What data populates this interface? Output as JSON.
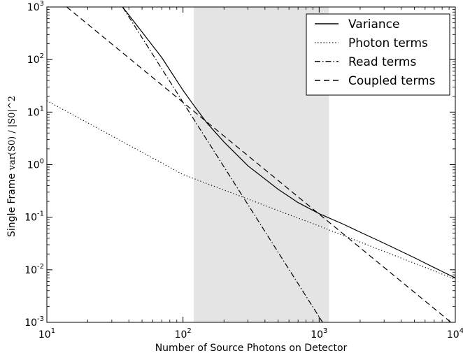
{
  "chart_data": {
    "type": "line",
    "xlabel": "Number of Source Photons on Detector",
    "ylabel_prefix": "Single Frame ",
    "ylabel_math": "var(S0) / |S0|^2",
    "x_scale": "log",
    "y_scale": "log",
    "xlim": [
      10,
      10000
    ],
    "ylim": [
      0.001,
      1000
    ],
    "grid": false,
    "legend_position": "top-right",
    "shaded_region": {
      "x_range": [
        120,
        1180
      ],
      "color": "#e4e4e4"
    },
    "x_ticks": [
      {
        "value": 10,
        "base": "10",
        "exp": "1"
      },
      {
        "value": 100,
        "base": "10",
        "exp": "2"
      },
      {
        "value": 1000,
        "base": "10",
        "exp": "3"
      },
      {
        "value": 10000,
        "base": "10",
        "exp": "4"
      }
    ],
    "y_ticks": [
      {
        "value": 0.001,
        "base": "10",
        "exp": "-3"
      },
      {
        "value": 0.01,
        "base": "10",
        "exp": "-2"
      },
      {
        "value": 0.1,
        "base": "10",
        "exp": "-1"
      },
      {
        "value": 1,
        "base": "10",
        "exp": "0"
      },
      {
        "value": 10,
        "base": "10",
        "exp": "1"
      },
      {
        "value": 100,
        "base": "10",
        "exp": "2"
      },
      {
        "value": 1000,
        "base": "10",
        "exp": "3"
      }
    ],
    "series": [
      {
        "name": "Variance",
        "style": "solid",
        "color": "#000000",
        "x": [
          36,
          50,
          70,
          100,
          120,
          150,
          200,
          300,
          500,
          700,
          1000,
          1500,
          2000,
          3000,
          5000,
          7000,
          10000
        ],
        "y": [
          1000,
          335,
          108,
          26,
          13.5,
          6.2,
          2.7,
          0.95,
          0.34,
          0.19,
          0.117,
          0.074,
          0.052,
          0.032,
          0.017,
          0.011,
          0.007
        ]
      },
      {
        "name": "Photon terms",
        "style": "dotted",
        "color": "#000000",
        "x": [
          10,
          100,
          1000,
          10000
        ],
        "y": [
          16.5,
          0.65,
          0.068,
          0.0066
        ]
      },
      {
        "name": "Read terms",
        "style": "dashdot",
        "color": "#000000",
        "x": [
          36,
          1060
        ],
        "y": [
          1000,
          0.001
        ]
      },
      {
        "name": "Coupled terms",
        "style": "dashed",
        "color": "#000000",
        "x": [
          14,
          9300
        ],
        "y": [
          1000,
          0.001
        ]
      }
    ]
  }
}
